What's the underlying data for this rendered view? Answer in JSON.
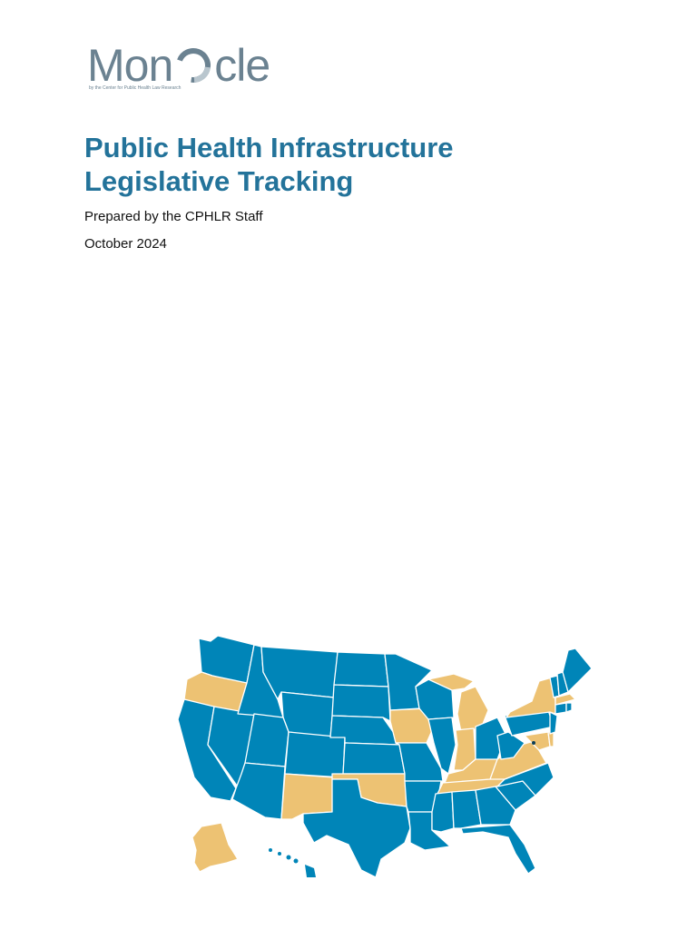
{
  "logo": {
    "word_left": "Mon",
    "word_right": "cle",
    "tagline": "by the Center for Public Health Law Research"
  },
  "document": {
    "title_line_1": "Public Health Infrastructure",
    "title_line_2": "Legislative Tracking",
    "prepared_by": "Prepared by the CPHLR Staff",
    "date": "October 2024"
  },
  "colors": {
    "title": "#23739a",
    "logo_gray": "#6b8291",
    "map_blue": "#0085b8",
    "map_tan": "#edc273",
    "state_border": "#ffffff"
  },
  "map": {
    "type": "us-state-choropleth",
    "highlighted_states": [
      "Alaska",
      "Oregon",
      "New Mexico",
      "Oklahoma",
      "Iowa",
      "Michigan",
      "Indiana",
      "Kentucky",
      "Tennessee",
      "Virginia",
      "Maryland",
      "Delaware",
      "New York",
      "Massachusetts"
    ]
  }
}
